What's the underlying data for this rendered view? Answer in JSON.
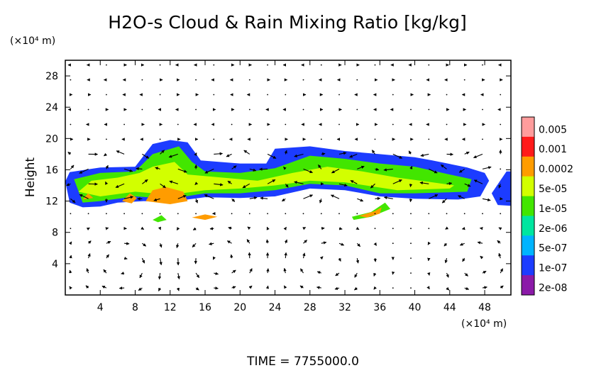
{
  "chart_data": {
    "type": "heatmap",
    "title": "H2O-s Cloud & Rain Mixing Ratio [kg/kg]",
    "ylabel": "Height",
    "yunit": "(×10⁴ m)",
    "xunit": "(×10⁴ m)",
    "xlabel": "",
    "xlim": [
      0,
      51
    ],
    "ylim": [
      0,
      30
    ],
    "xticks": [
      4,
      8,
      12,
      16,
      20,
      24,
      28,
      32,
      36,
      40,
      44,
      48
    ],
    "yticks": [
      4,
      8,
      12,
      16,
      20,
      24,
      28
    ],
    "grid": false,
    "footer": "TIME = 7755000.0",
    "colorbar": {
      "labels": [
        "0.005",
        "0.001",
        "0.0002",
        "5e-05",
        "1e-05",
        "2e-06",
        "5e-07",
        "1e-07",
        "2e-08"
      ],
      "colors": [
        "#ff9c9c",
        "#ff1a1a",
        "#ff9c00",
        "#d2ff00",
        "#42e600",
        "#00e6a0",
        "#00b4ff",
        "#1c3cff",
        "#8b1aa8"
      ]
    },
    "cloud_regions": [
      {
        "level": "1e-07",
        "polygon": [
          [
            0,
            14.5
          ],
          [
            0.5,
            15.7
          ],
          [
            4,
            16.3
          ],
          [
            8,
            16.4
          ],
          [
            10,
            19.3
          ],
          [
            12,
            19.8
          ],
          [
            14,
            19.5
          ],
          [
            15.5,
            17.2
          ],
          [
            20,
            16.8
          ],
          [
            23,
            16.8
          ],
          [
            24,
            18.7
          ],
          [
            28,
            19.0
          ],
          [
            32,
            18.4
          ],
          [
            36,
            18.0
          ],
          [
            40,
            17.6
          ],
          [
            42,
            17.2
          ],
          [
            46,
            16.3
          ],
          [
            48,
            15.6
          ],
          [
            48.5,
            14.6
          ],
          [
            47.5,
            12.6
          ],
          [
            45,
            12.2
          ],
          [
            40,
            12.3
          ],
          [
            36,
            12.6
          ],
          [
            32,
            13.4
          ],
          [
            28,
            13.6
          ],
          [
            24,
            12.6
          ],
          [
            20,
            12.4
          ],
          [
            16,
            12.5
          ],
          [
            14,
            12.2
          ],
          [
            12,
            11.8
          ],
          [
            9,
            12.0
          ],
          [
            6,
            11.8
          ],
          [
            4,
            11.3
          ],
          [
            2,
            11.2
          ],
          [
            0.5,
            11.8
          ]
        ]
      },
      {
        "level": "1e-07",
        "polygon": [
          [
            48.8,
            13.0
          ],
          [
            50.5,
            15.8
          ],
          [
            51,
            15.8
          ],
          [
            51,
            11.4
          ],
          [
            49.5,
            11.5
          ]
        ]
      },
      {
        "level": "1e-05",
        "polygon": [
          [
            1,
            14.8
          ],
          [
            4,
            15.6
          ],
          [
            8,
            15.8
          ],
          [
            10,
            18.0
          ],
          [
            13,
            19.0
          ],
          [
            14.5,
            17.0
          ],
          [
            16,
            15.8
          ],
          [
            20,
            15.6
          ],
          [
            24,
            16.2
          ],
          [
            28,
            17.8
          ],
          [
            32,
            17.4
          ],
          [
            36,
            16.8
          ],
          [
            40,
            16.4
          ],
          [
            44,
            15.4
          ],
          [
            46.5,
            14.8
          ],
          [
            46,
            13.2
          ],
          [
            40,
            13.0
          ],
          [
            36,
            13.0
          ],
          [
            32,
            14.0
          ],
          [
            28,
            14.2
          ],
          [
            24,
            13.4
          ],
          [
            20,
            13.0
          ],
          [
            16,
            13.0
          ],
          [
            12,
            12.3
          ],
          [
            8,
            12.6
          ],
          [
            4,
            12.0
          ],
          [
            2,
            11.8
          ]
        ]
      },
      {
        "level": "5e-05",
        "polygon": [
          [
            1.5,
            13.2
          ],
          [
            3,
            14.6
          ],
          [
            6,
            15.0
          ],
          [
            8.5,
            15.6
          ],
          [
            10,
            16.4
          ],
          [
            12.5,
            17.0
          ],
          [
            14,
            15.4
          ],
          [
            18,
            15.0
          ],
          [
            22,
            14.6
          ],
          [
            26,
            15.6
          ],
          [
            30,
            16.4
          ],
          [
            34,
            15.8
          ],
          [
            38,
            15.0
          ],
          [
            42,
            14.4
          ],
          [
            44.5,
            14.0
          ],
          [
            44,
            13.6
          ],
          [
            38,
            13.4
          ],
          [
            32,
            14.4
          ],
          [
            28,
            14.6
          ],
          [
            24,
            14.0
          ],
          [
            20,
            13.6
          ],
          [
            16,
            13.4
          ],
          [
            12,
            12.8
          ],
          [
            8,
            13.2
          ],
          [
            4,
            12.6
          ]
        ]
      },
      {
        "level": "0.0002",
        "polygon": [
          [
            9.2,
            12.0
          ],
          [
            10,
            13.4
          ],
          [
            11.5,
            13.8
          ],
          [
            13.5,
            13.2
          ],
          [
            14,
            12.0
          ],
          [
            12,
            11.6
          ]
        ]
      },
      {
        "level": "0.0002",
        "polygon": [
          [
            6.5,
            12.0
          ],
          [
            7.4,
            13.0
          ],
          [
            8.2,
            12.4
          ],
          [
            7.6,
            11.7
          ]
        ]
      },
      {
        "level": "0.0002",
        "polygon": [
          [
            2,
            12.2
          ],
          [
            2.6,
            13.0
          ],
          [
            3.2,
            12.4
          ]
        ]
      },
      {
        "level": "1e-05",
        "polygon": [
          [
            32.8,
            10.0
          ],
          [
            35,
            10.6
          ],
          [
            36.6,
            11.8
          ],
          [
            37.2,
            11.0
          ],
          [
            35,
            10.0
          ],
          [
            33,
            9.6
          ]
        ]
      },
      {
        "level": "0.0002",
        "polygon": [
          [
            33.6,
            10.1
          ],
          [
            35.4,
            10.7
          ],
          [
            36.2,
            11.2
          ],
          [
            36.0,
            10.4
          ],
          [
            34.5,
            9.9
          ]
        ]
      },
      {
        "level": "1e-05",
        "polygon": [
          [
            10,
            9.6
          ],
          [
            11,
            10.2
          ],
          [
            11.6,
            9.6
          ],
          [
            10.6,
            9.3
          ]
        ]
      },
      {
        "level": "0.0002",
        "polygon": [
          [
            14.5,
            9.9
          ],
          [
            16,
            10.3
          ],
          [
            17.4,
            10.0
          ],
          [
            16,
            9.6
          ]
        ]
      }
    ],
    "circulation_cells": [
      {
        "cx": 6.5,
        "cy": 3.8,
        "rx": 4.5,
        "ry": 3.2,
        "sense": "cw"
      },
      {
        "cx": 17.5,
        "cy": 4.5,
        "rx": 4.5,
        "ry": 3.4,
        "sense": "ccw"
      },
      {
        "cx": 30.0,
        "cy": 4.2,
        "rx": 4.5,
        "ry": 3.3,
        "sense": "cw"
      },
      {
        "cx": 47.0,
        "cy": 4.0,
        "rx": 3.8,
        "ry": 3.2,
        "sense": "ccw"
      }
    ]
  }
}
